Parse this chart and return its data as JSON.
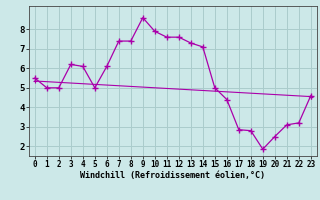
{
  "xlabel": "Windchill (Refroidissement éolien,°C)",
  "background_color": "#cce8e8",
  "plot_bg_color": "#cce8e8",
  "line_color": "#aa00aa",
  "grid_color": "#aacccc",
  "xlim": [
    -0.5,
    23.5
  ],
  "ylim": [
    1.5,
    9.2
  ],
  "yticks": [
    2,
    3,
    4,
    5,
    6,
    7,
    8
  ],
  "xticks": [
    0,
    1,
    2,
    3,
    4,
    5,
    6,
    7,
    8,
    9,
    10,
    11,
    12,
    13,
    14,
    15,
    16,
    17,
    18,
    19,
    20,
    21,
    22,
    23
  ],
  "line1_x": [
    0,
    1,
    2,
    3,
    4,
    5,
    6,
    7,
    8,
    9,
    10,
    11,
    12,
    13,
    14,
    15,
    16,
    17,
    18,
    19,
    20,
    21,
    22,
    23
  ],
  "line1_y": [
    5.5,
    5.0,
    5.0,
    6.2,
    6.1,
    5.0,
    6.1,
    7.4,
    7.4,
    8.6,
    7.9,
    7.6,
    7.6,
    7.3,
    7.1,
    5.0,
    4.4,
    2.85,
    2.8,
    1.85,
    2.5,
    3.1,
    3.2,
    4.6
  ],
  "line2_x": [
    0,
    23
  ],
  "line2_y": [
    5.35,
    4.55
  ]
}
